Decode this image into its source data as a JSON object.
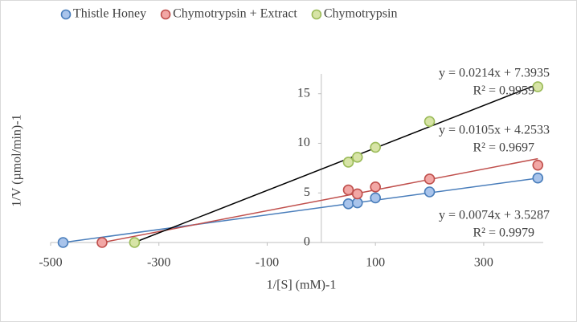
{
  "chart_data": {
    "type": "scatter",
    "x_label": "1/[S] (mM)-1",
    "y_label": "1/V (µmol/min)-1",
    "xlim": [
      -500,
      410
    ],
    "xticks": [
      -500,
      -300,
      -100,
      100,
      300
    ],
    "ylim": [
      0,
      17
    ],
    "yticks": [
      0,
      5,
      10,
      15
    ],
    "grid": false,
    "legend": "top",
    "series": [
      {
        "name": "Thistle Honey",
        "color": "#4a7ebb",
        "fill": "#a9c4eb",
        "x": [
          -477,
          50,
          66.7,
          100,
          200,
          400
        ],
        "values": [
          0,
          3.9,
          4.0,
          4.5,
          5.1,
          6.5
        ],
        "trendline": {
          "color": "#4a7ebb",
          "slope": 0.0074,
          "intercept": 3.5287,
          "equation": "y = 0.0074x + 3.5287",
          "r2": "R² = 0.9979"
        }
      },
      {
        "name": "Chymotrypsin + Extract",
        "color": "#c0504d",
        "fill": "#f2a7a5",
        "x": [
          -405,
          50,
          66.7,
          100,
          200,
          400
        ],
        "values": [
          0,
          5.3,
          4.9,
          5.6,
          6.4,
          7.8
        ],
        "trendline": {
          "color": "#c0504d",
          "slope": 0.0105,
          "intercept": 4.2533,
          "equation": "y = 0.0105x + 4.2533",
          "r2": "R² = 0.9697"
        }
      },
      {
        "name": "Chymotrypsin",
        "color": "#9bbb59",
        "fill": "#d7e4a6",
        "x": [
          -345,
          50,
          66.7,
          100,
          200,
          400
        ],
        "values": [
          0,
          8.1,
          8.6,
          9.6,
          12.2,
          15.7
        ],
        "trendline": {
          "color": "#000000",
          "slope": 0.0214,
          "intercept": 7.3935,
          "equation": "y = 0.0214x + 7.3935",
          "r2": "R² = 0.9959"
        }
      }
    ]
  }
}
